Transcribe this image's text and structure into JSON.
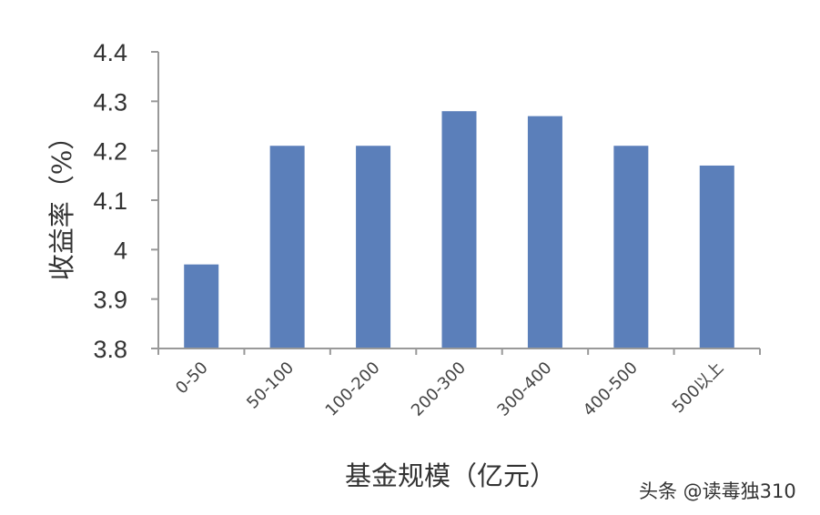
{
  "chart_data": {
    "type": "bar",
    "title": "",
    "xlabel": "基金规模（亿元）",
    "ylabel": "收益率（%）",
    "categories": [
      "0-50",
      "50-100",
      "100-200",
      "200-300",
      "300-400",
      "400-500",
      "500以上"
    ],
    "values": [
      3.97,
      4.21,
      4.21,
      4.28,
      4.27,
      4.21,
      4.17
    ],
    "ylim": [
      3.8,
      4.4
    ],
    "yticks": [
      "4.4",
      "4.3",
      "4.2",
      "4.1",
      "4",
      "3.9",
      "3.8"
    ],
    "grid": false,
    "legend": null,
    "bar_color": "#5b7fba",
    "axis_color": "#999999"
  },
  "watermark": "头条 @读毒独310"
}
